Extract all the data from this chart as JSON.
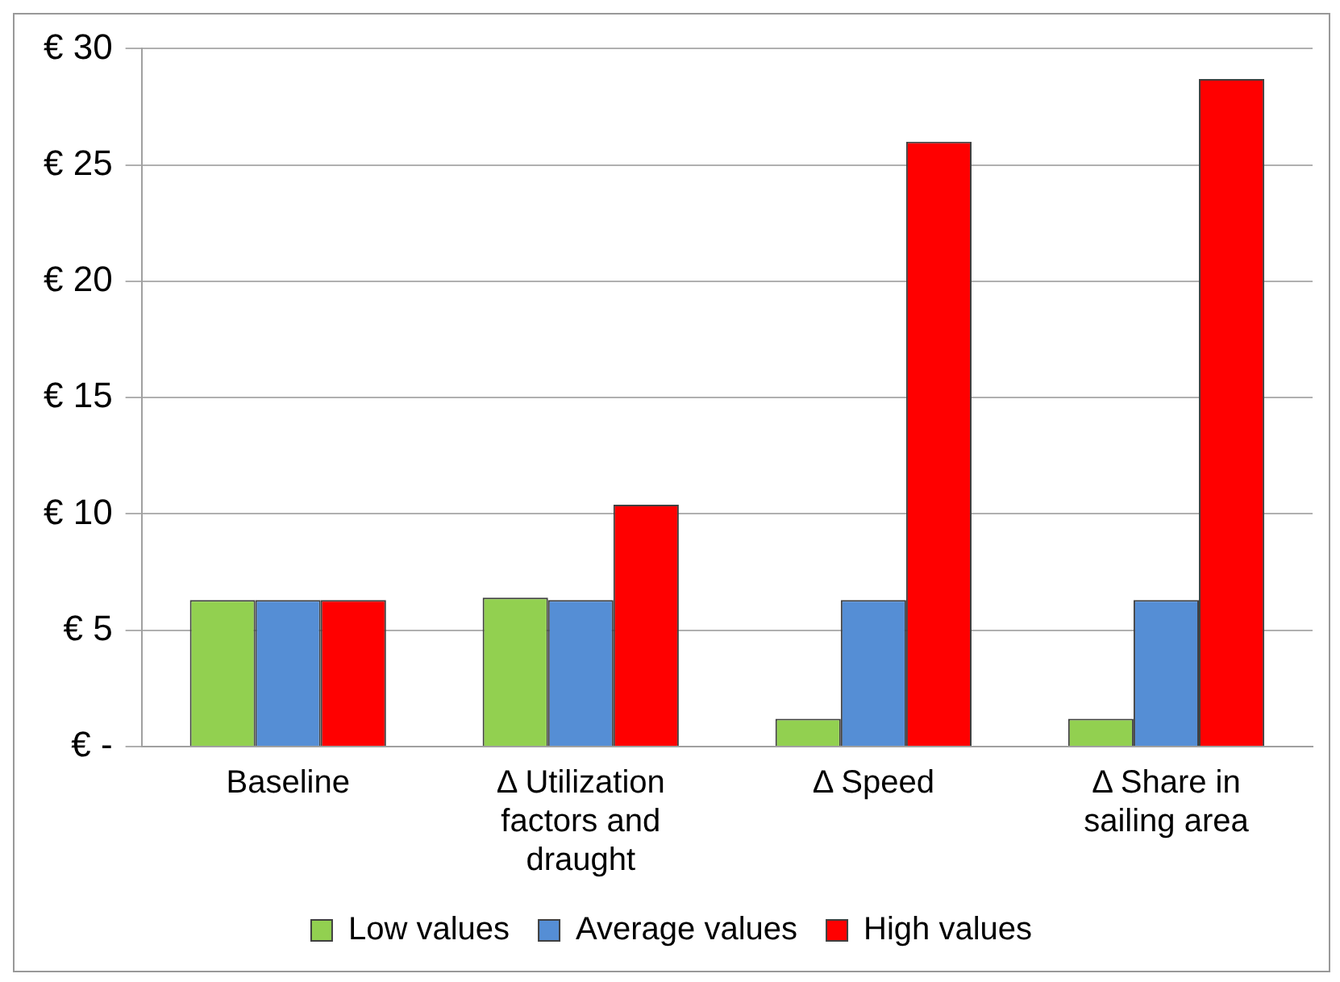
{
  "chart_data": {
    "type": "bar",
    "categories": [
      "Baseline",
      "Δ Utilization factors and draught",
      "Δ Speed",
      "Δ Share in sailing area"
    ],
    "series": [
      {
        "name": "Low values",
        "color": "#92d050",
        "values": [
          6.3,
          6.4,
          1.2,
          1.2
        ]
      },
      {
        "name": "Average values",
        "color": "#558ed5",
        "values": [
          6.3,
          6.3,
          6.3,
          6.3
        ]
      },
      {
        "name": "High values",
        "color": "#ff0000",
        "values": [
          6.3,
          10.4,
          26.0,
          28.7
        ]
      }
    ],
    "ylim": [
      0,
      30
    ],
    "yticks": [
      {
        "value": 0,
        "label": "€ -"
      },
      {
        "value": 5,
        "label": "€ 5"
      },
      {
        "value": 10,
        "label": "€ 10"
      },
      {
        "value": 15,
        "label": "€ 15"
      },
      {
        "value": 20,
        "label": "€ 20"
      },
      {
        "value": 25,
        "label": "€ 25"
      },
      {
        "value": 30,
        "label": "€ 30"
      }
    ],
    "grid": "y",
    "legend": "bottom"
  }
}
